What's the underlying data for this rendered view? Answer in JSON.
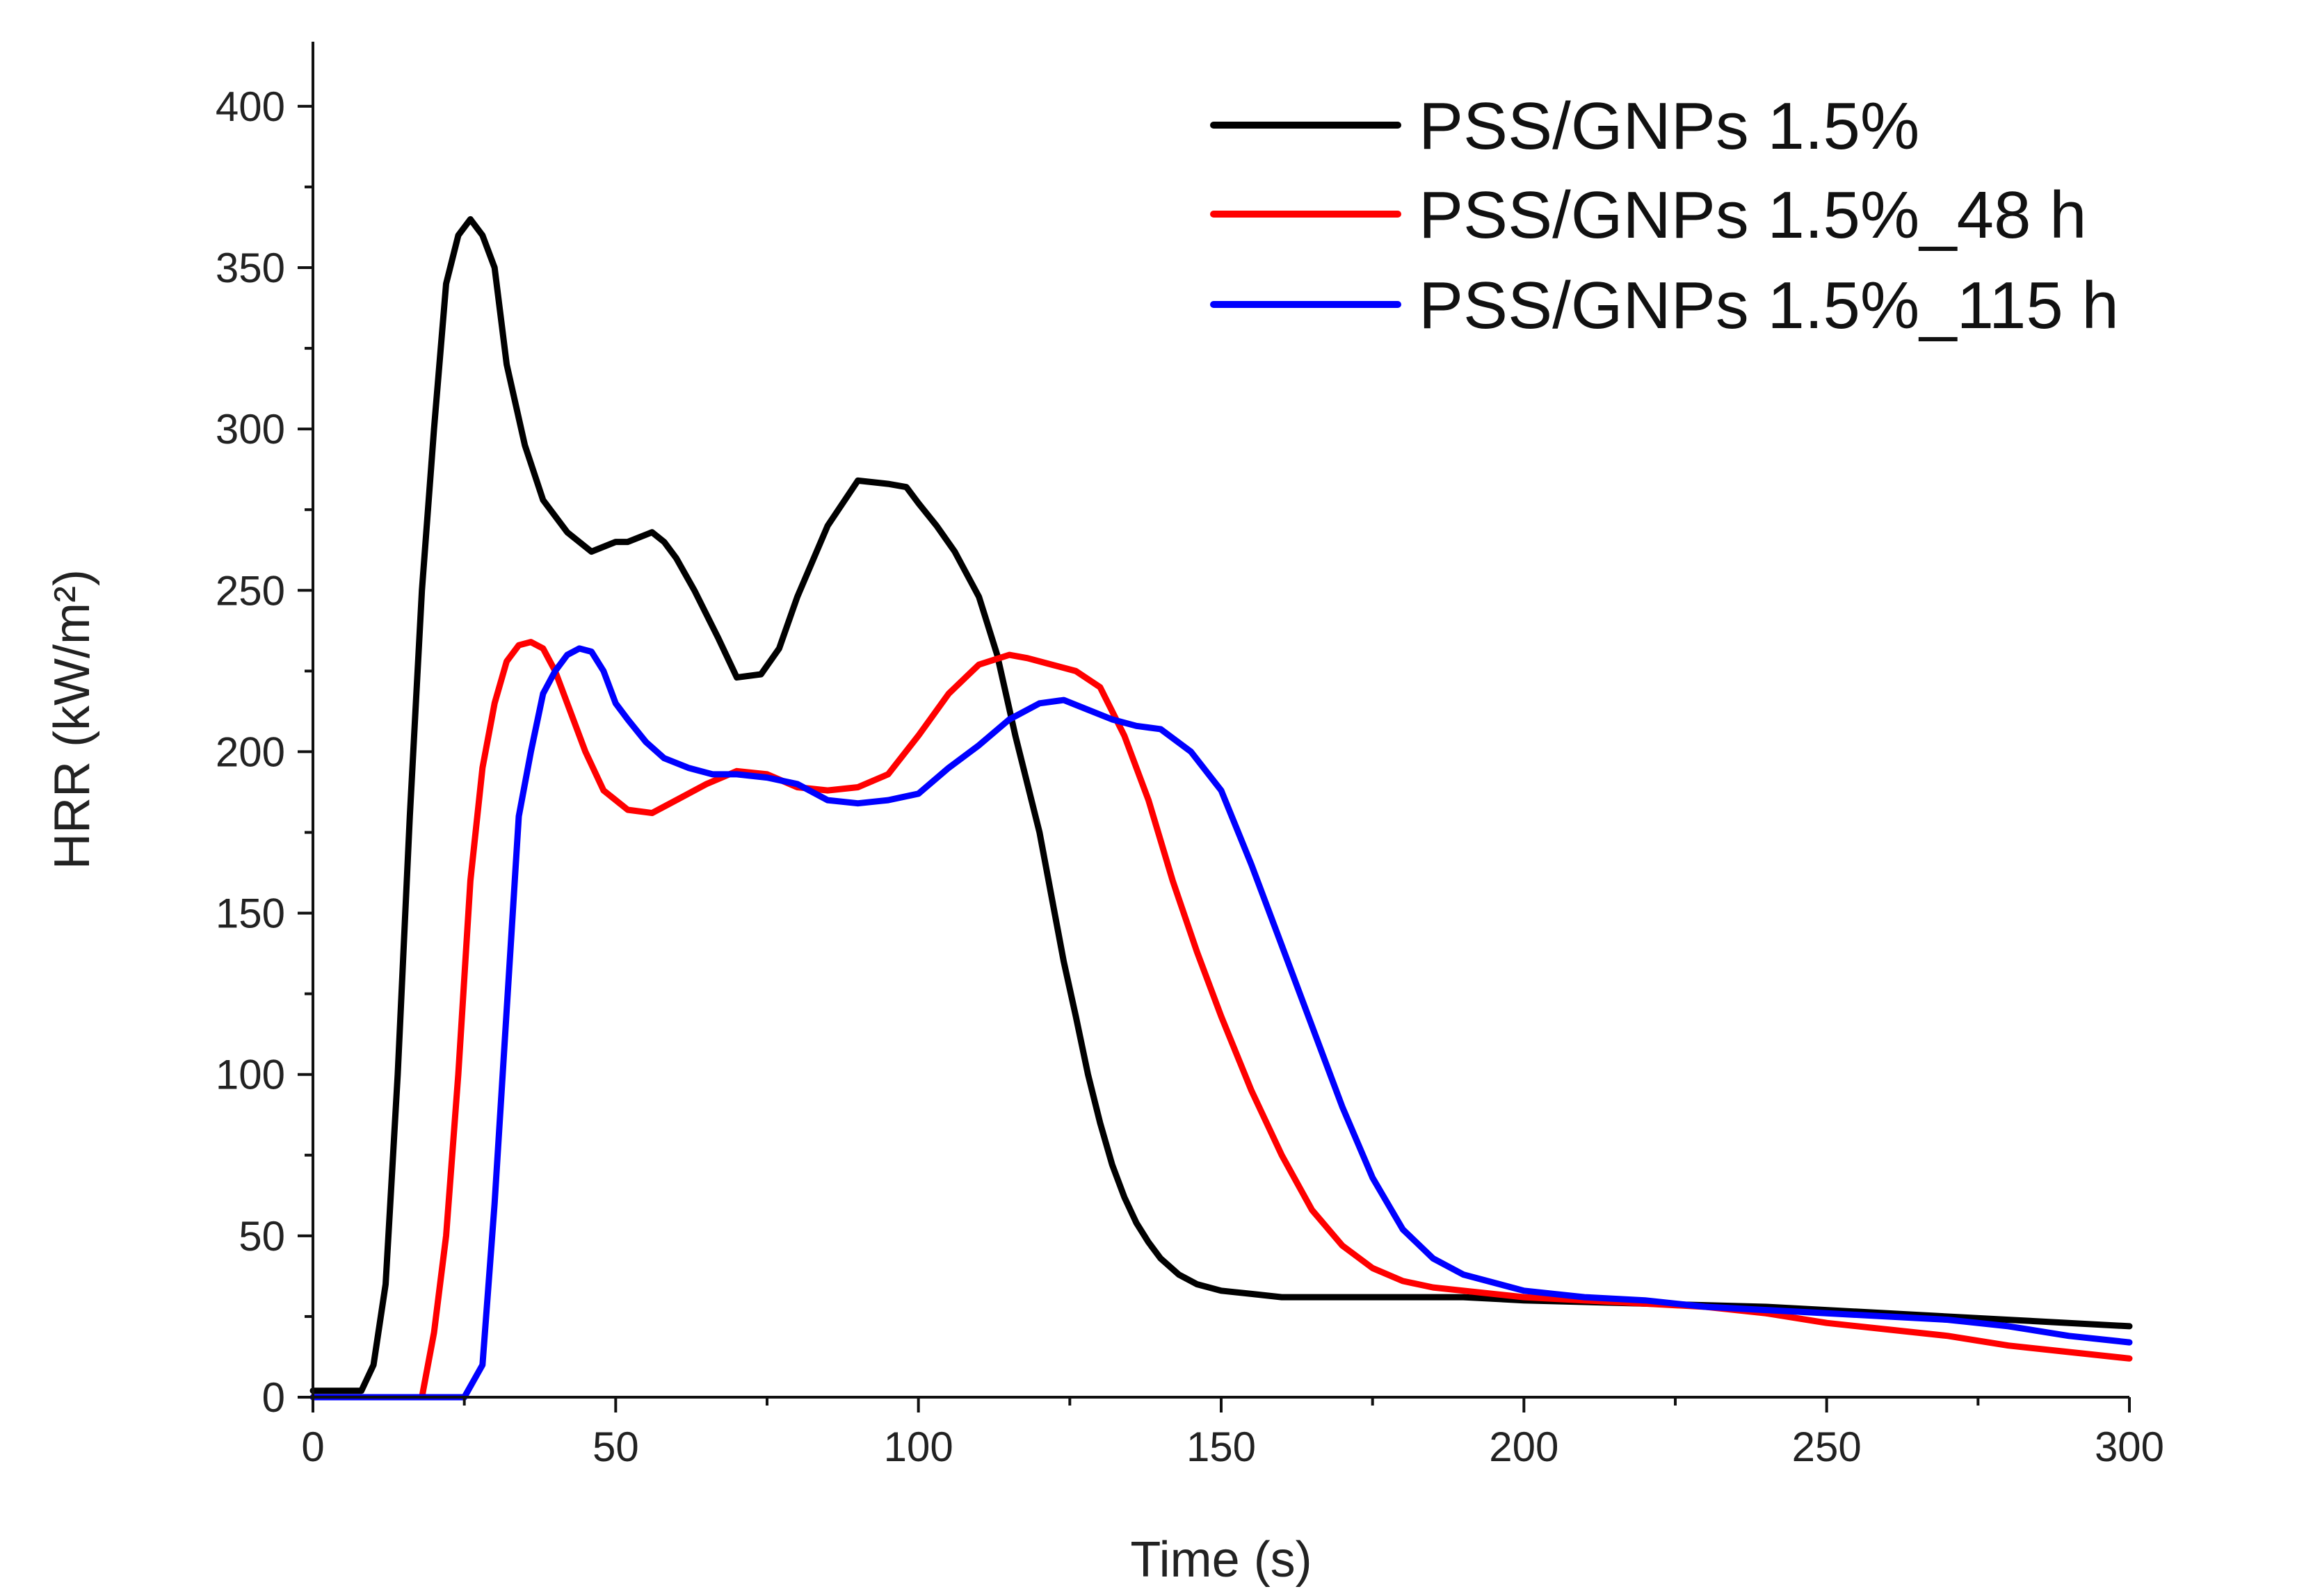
{
  "chart_data": {
    "type": "line",
    "title": "",
    "xlabel": "Time (s)",
    "ylabel": "HRR (kW/m²)",
    "xlim": [
      0,
      300
    ],
    "ylim": [
      0,
      420
    ],
    "xticks": [
      0,
      50,
      100,
      150,
      200,
      250,
      300
    ],
    "yticks": [
      0,
      50,
      100,
      150,
      200,
      250,
      300,
      350,
      400
    ],
    "grid": false,
    "legend_position": "top-right",
    "series": [
      {
        "name": "PSS/GNPs 1.5%",
        "color": "#000000",
        "x": [
          0,
          8,
          10,
          12,
          14,
          16,
          18,
          20,
          22,
          24,
          26,
          28,
          30,
          32,
          35,
          38,
          42,
          46,
          50,
          52,
          56,
          58,
          60,
          63,
          67,
          70,
          74,
          77,
          80,
          85,
          90,
          95,
          98,
          100,
          103,
          106,
          110,
          113,
          116,
          118,
          120,
          122,
          124,
          126,
          128,
          130,
          132,
          134,
          136,
          138,
          140,
          143,
          146,
          150,
          155,
          160,
          170,
          180,
          190,
          200,
          220,
          240,
          260,
          280,
          300
        ],
        "values": [
          2,
          2,
          10,
          35,
          100,
          180,
          250,
          300,
          345,
          360,
          365,
          360,
          350,
          320,
          295,
          278,
          268,
          262,
          265,
          265,
          268,
          265,
          260,
          250,
          235,
          223,
          224,
          232,
          248,
          270,
          284,
          283,
          282,
          277,
          270,
          262,
          248,
          230,
          205,
          190,
          175,
          155,
          135,
          118,
          100,
          85,
          72,
          62,
          54,
          48,
          43,
          38,
          35,
          33,
          32,
          31,
          31,
          31,
          31,
          30,
          29,
          28,
          26,
          24,
          22
        ]
      },
      {
        "name": "PSS/GNPs 1.5%_48 h",
        "color": "#ff0000",
        "x": [
          0,
          18,
          20,
          22,
          24,
          26,
          28,
          30,
          32,
          34,
          36,
          38,
          40,
          42,
          45,
          48,
          52,
          56,
          60,
          65,
          70,
          75,
          80,
          85,
          90,
          95,
          100,
          105,
          110,
          115,
          118,
          122,
          126,
          130,
          134,
          138,
          142,
          146,
          150,
          155,
          160,
          165,
          170,
          175,
          180,
          185,
          190,
          200,
          210,
          220,
          230,
          240,
          250,
          260,
          270,
          280,
          290,
          300
        ],
        "values": [
          0,
          0,
          20,
          50,
          100,
          160,
          195,
          215,
          228,
          233,
          234,
          232,
          225,
          215,
          200,
          188,
          182,
          181,
          185,
          190,
          194,
          193,
          189,
          188,
          189,
          193,
          205,
          218,
          227,
          230,
          229,
          227,
          225,
          220,
          205,
          185,
          160,
          138,
          118,
          95,
          75,
          58,
          47,
          40,
          36,
          34,
          33,
          31,
          30,
          29,
          28,
          26,
          23,
          21,
          19,
          16,
          14,
          12
        ]
      },
      {
        "name": "PSS/GNPs 1.5%_115 h",
        "color": "#0000ff",
        "x": [
          0,
          25,
          28,
          30,
          32,
          34,
          36,
          38,
          40,
          42,
          44,
          46,
          48,
          50,
          52,
          55,
          58,
          62,
          66,
          70,
          75,
          80,
          85,
          90,
          95,
          100,
          105,
          110,
          115,
          120,
          124,
          128,
          132,
          136,
          140,
          145,
          150,
          155,
          160,
          165,
          170,
          175,
          180,
          185,
          190,
          200,
          210,
          220,
          230,
          240,
          250,
          260,
          270,
          280,
          290,
          300
        ],
        "values": [
          0,
          0,
          10,
          60,
          120,
          180,
          200,
          218,
          225,
          230,
          232,
          231,
          225,
          215,
          210,
          203,
          198,
          195,
          193,
          193,
          192,
          190,
          185,
          184,
          185,
          187,
          195,
          202,
          210,
          215,
          216,
          213,
          210,
          208,
          207,
          200,
          188,
          165,
          140,
          115,
          90,
          68,
          52,
          43,
          38,
          33,
          31,
          30,
          28,
          27,
          26,
          25,
          24,
          22,
          19,
          17
        ]
      }
    ]
  }
}
